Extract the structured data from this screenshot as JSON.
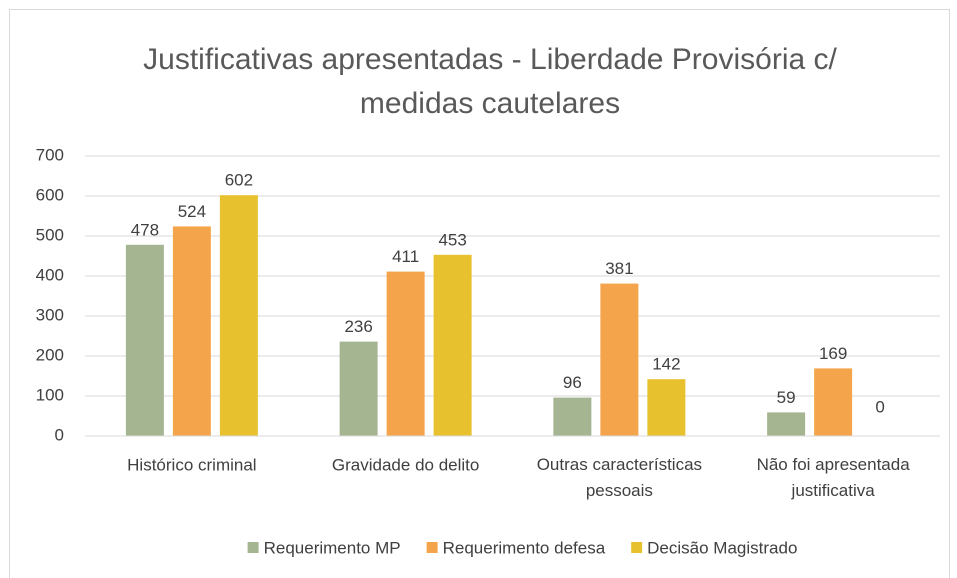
{
  "chart_data": {
    "type": "bar",
    "title": "Justificativas apresentadas - Liberdade Provisória c/ medidas cautelares",
    "categories": [
      "Histórico criminal",
      "Gravidade do delito",
      "Outras características pessoais",
      "Não foi apresentada justificativa"
    ],
    "series": [
      {
        "name": "Requerimento MP",
        "color": "#a5b592",
        "values": [
          478,
          236,
          96,
          59
        ]
      },
      {
        "name": "Requerimento defesa",
        "color": "#f4a54b",
        "values": [
          524,
          411,
          381,
          169
        ]
      },
      {
        "name": "Decisão Magistrado",
        "color": "#e8c22e",
        "values": [
          602,
          453,
          142,
          0
        ]
      }
    ],
    "ylim": [
      0,
      700
    ],
    "yticks": [
      0,
      100,
      200,
      300,
      400,
      500,
      600,
      700
    ],
    "grid": true,
    "legend": "bottom"
  }
}
